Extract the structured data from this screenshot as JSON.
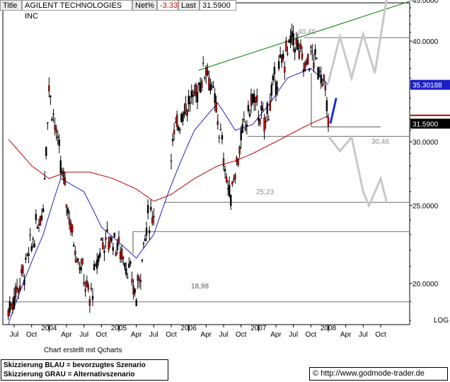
{
  "header": {
    "title_label": "Title",
    "instrument": "AGILENT TECHNOLOGIES INC",
    "net_label": "Net%",
    "net_value": "-3.33",
    "last_label": "Last",
    "last_value": "31.5900"
  },
  "footer": {
    "credit": "Chart erstellt mit Qcharts",
    "legend_blue": "Skizzierung BLAU = bevorzugtes Szenario",
    "legend_grey": "Skizzierung GRAU = Alternativszenario",
    "copyright_symbol": "©",
    "source_url": "http://www.godmode-trader.de"
  },
  "colors": {
    "price_up": "#000000",
    "price_down": "#c00000",
    "ma_short": "#2020c0",
    "ma_long": "#c00000",
    "trendline": "#008000",
    "scenario_blue": "#1f2fd0",
    "scenario_grey": "#c8c8c8",
    "support": "#707070",
    "last_box": "#000000",
    "ma_box": "#1e1ec8",
    "ma_long_box": "#c00000"
  },
  "chart_data": {
    "type": "line",
    "x_tick_labels": [
      "Jul",
      "Oct",
      "2004",
      "Apr",
      "Jul",
      "Oct",
      "2005",
      "Apr",
      "Jul",
      "Oct",
      "2006",
      "Apr",
      "Jul",
      "Oct",
      "2007",
      "Apr",
      "Jul",
      "Oct",
      "2008",
      "Apr",
      "Jul",
      "Oct"
    ],
    "x_tick_dates": [
      "2003-07",
      "2003-10",
      "2004-01",
      "2004-04",
      "2004-07",
      "2004-10",
      "2005-01",
      "2005-04",
      "2005-07",
      "2005-10",
      "2006-01",
      "2006-04",
      "2006-07",
      "2006-10",
      "2007-01",
      "2007-04",
      "2007-07",
      "2007-10",
      "2008-01",
      "2008-04",
      "2008-07",
      "2008-10"
    ],
    "y_tick_labels": [
      "20.0000",
      "25.0000",
      "30.0000",
      "40.0000",
      "45.0000"
    ],
    "y_ticks": [
      20,
      25,
      30,
      40,
      45
    ],
    "ylim": [
      18,
      45
    ],
    "scale": "log",
    "scale_label": "LOG",
    "grid": false,
    "series": [
      {
        "name": "price",
        "x": [
          "2003-06",
          "2003-09",
          "2003-12",
          "2004-01",
          "2004-03",
          "2004-05",
          "2004-08",
          "2004-10",
          "2004-12",
          "2005-02",
          "2005-04",
          "2005-06",
          "2005-08",
          "2005-10",
          "2005-12",
          "2006-02",
          "2006-04",
          "2006-06",
          "2006-08",
          "2006-10",
          "2006-12",
          "2007-02",
          "2007-04",
          "2007-06",
          "2007-07",
          "2007-09",
          "2007-10",
          "2007-12",
          "2008-01"
        ],
        "y": [
          18.5,
          21.0,
          25.0,
          35.0,
          28.0,
          23.0,
          19.0,
          22.5,
          22.8,
          21.5,
          19.2,
          24.0,
          25.2,
          29.5,
          33.0,
          34.0,
          37.5,
          32.0,
          25.5,
          30.0,
          34.0,
          31.5,
          36.0,
          39.0,
          40.4,
          37.0,
          38.5,
          36.5,
          31.59
        ]
      },
      {
        "name": "ma_short",
        "x": [
          "2003-06",
          "2003-12",
          "2004-03",
          "2004-07",
          "2004-10",
          "2005-01",
          "2005-04",
          "2005-07",
          "2005-10",
          "2006-02",
          "2006-06",
          "2006-09",
          "2006-12",
          "2007-03",
          "2007-06",
          "2007-10",
          "2008-01"
        ],
        "y": [
          17.8,
          23.0,
          27.0,
          26.0,
          23.5,
          22.5,
          21.5,
          23.0,
          26.5,
          31.0,
          33.5,
          31.0,
          31.5,
          33.5,
          36.0,
          37.0,
          35.3
        ]
      },
      {
        "name": "ma_long",
        "x": [
          "2003-06",
          "2003-10",
          "2004-01",
          "2004-04",
          "2004-08",
          "2004-12",
          "2005-04",
          "2005-07",
          "2005-10",
          "2006-02",
          "2006-06",
          "2006-09",
          "2006-12",
          "2007-04",
          "2007-07",
          "2007-10",
          "2008-01"
        ],
        "y": [
          30.2,
          28.0,
          27.0,
          27.5,
          27.5,
          27.0,
          26.2,
          25.3,
          25.8,
          27.0,
          28.0,
          28.4,
          29.0,
          30.0,
          30.8,
          31.6,
          32.3
        ]
      }
    ],
    "annotations": [
      "40,40",
      "30,46",
      "25,23",
      "18,98"
    ],
    "support_levels": [
      {
        "y": 40.4,
        "label": "40,40"
      },
      {
        "y": 30.46,
        "label": "30,46"
      },
      {
        "y": 25.23,
        "label": "25,23"
      },
      {
        "y": 18.98,
        "label": "18,98"
      }
    ],
    "last_price_label": "31.5900",
    "ma_value_label": "35.30188",
    "trendline": {
      "from_date": "2006-01",
      "from_y": 36.8,
      "to_date": "2008-10",
      "to_y": 45.0
    },
    "scenario_blue": {
      "from_date": "2008-01",
      "from_y": 31.6,
      "to_date": "2008-02",
      "to_y": 34.0
    },
    "scenario_grey_up": {
      "x": [
        "2008-01",
        "2008-03",
        "2008-05",
        "2008-07",
        "2008-09",
        "2008-11"
      ],
      "y": [
        35.5,
        40.5,
        36.0,
        40.8,
        36.5,
        45.0
      ]
    },
    "scenario_grey_down": {
      "x": [
        "2008-01",
        "2008-03",
        "2008-05",
        "2008-07",
        "2008-08",
        "2008-10",
        "2008-11"
      ],
      "y": [
        30.5,
        29.2,
        30.4,
        26.0,
        25.0,
        27.0,
        25.3
      ]
    }
  }
}
